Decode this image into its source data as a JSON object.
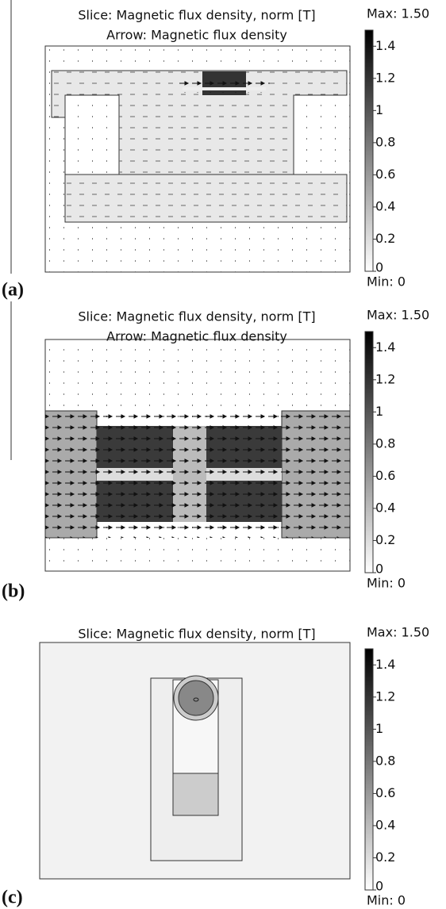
{
  "panels": [
    {
      "label": "(a)",
      "title": [
        "Slice: Magnetic flux density, norm [T]",
        "Arrow: Magnetic flux density"
      ],
      "colorbar": {
        "max_label": "Max: 1.50",
        "min_label": "Min: 0",
        "range": [
          0,
          1.5
        ],
        "ticks": [
          0,
          0.2,
          0.4,
          0.6,
          0.8,
          1,
          1.2,
          1.4
        ]
      }
    },
    {
      "label": "(b)",
      "title": [
        "Slice: Magnetic flux density, norm [T]",
        "Arrow: Magnetic flux density"
      ],
      "colorbar": {
        "max_label": "Max: 1.50",
        "min_label": "Min: 0",
        "range": [
          0,
          1.5
        ],
        "ticks": [
          0,
          0.2,
          0.4,
          0.6,
          0.8,
          1,
          1.2,
          1.4
        ]
      }
    },
    {
      "label": "(c)",
      "title": [
        "Slice: Magnetic flux density, norm [T]"
      ],
      "colorbar": {
        "max_label": "Max: 1.50",
        "min_label": "Min: 0",
        "range": [
          0,
          1.5
        ],
        "ticks": [
          0,
          0.2,
          0.4,
          0.6,
          0.8,
          1,
          1.2,
          1.4
        ]
      }
    }
  ]
}
